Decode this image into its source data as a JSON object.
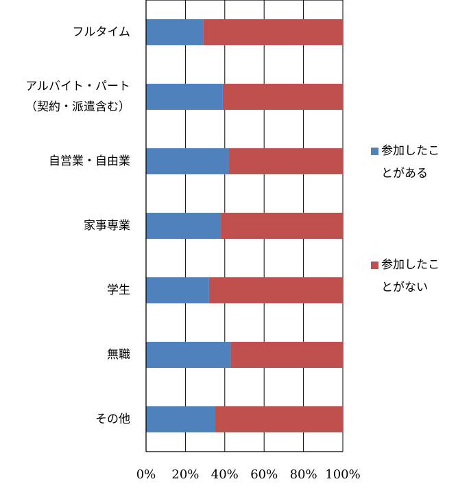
{
  "chart_data": {
    "type": "bar",
    "orientation": "horizontal",
    "stacked": "percent",
    "categories": [
      [
        "フルタイム"
      ],
      [
        "アルバイト・パート",
        "（契約・派遣含む）"
      ],
      [
        "自営業・自由業"
      ],
      [
        "家事専業"
      ],
      [
        "学生"
      ],
      [
        "無職"
      ],
      [
        "その他"
      ]
    ],
    "series": [
      {
        "name": "参加したことがある",
        "legend_lines": [
          "参加したこ",
          "とがある"
        ],
        "color": "#4f81bd",
        "values": [
          29,
          39,
          42,
          38,
          32,
          43,
          35
        ]
      },
      {
        "name": "参加したことがない",
        "legend_lines": [
          "参加したこ",
          "とがない"
        ],
        "color": "#c0504d",
        "values": [
          71,
          61,
          58,
          62,
          68,
          57,
          65
        ]
      }
    ],
    "x_ticks": [
      "0%",
      "20%",
      "40%",
      "60%",
      "80%",
      "100%"
    ],
    "xlim": [
      0,
      100
    ],
    "grid": true,
    "legend_position": "right"
  }
}
